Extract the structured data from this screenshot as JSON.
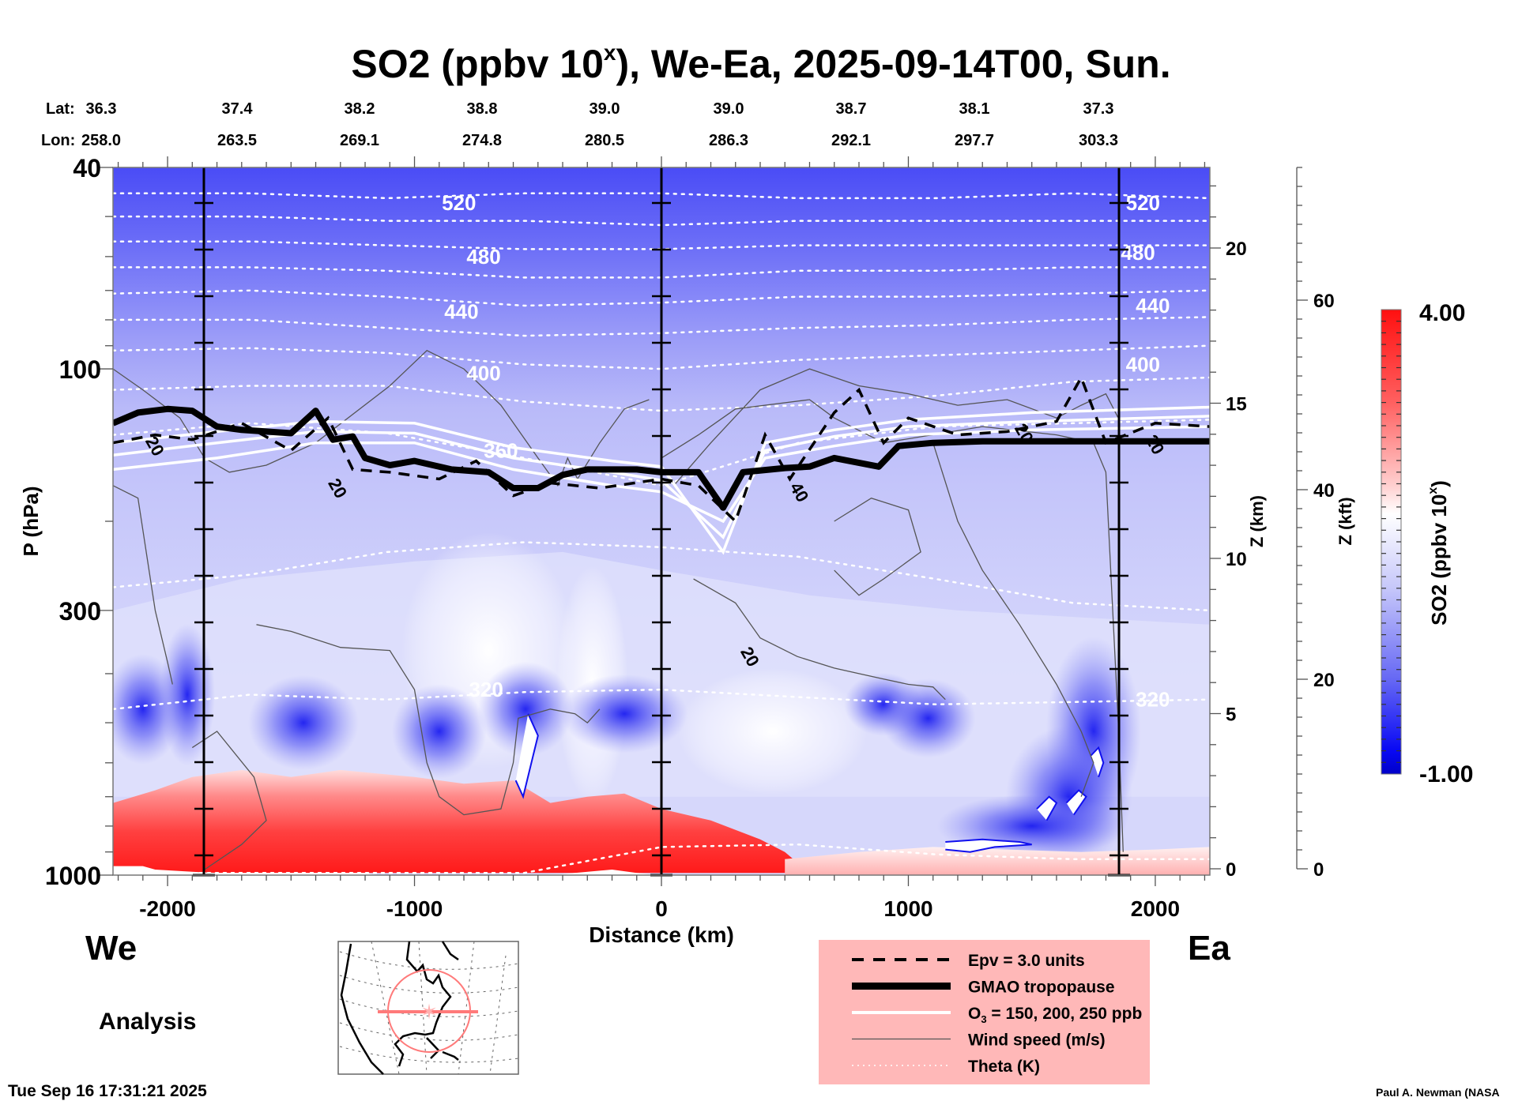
{
  "chart_data": {
    "type": "heatmap",
    "title": "SO2 (ppbv 10",
    "title_superscript": "x",
    "title_suffix": "), We-Ea, 2025-09-14T00, Sun.",
    "xlabel": "Distance (km)",
    "ylabel": "P (hPa)",
    "y2label": "Z (km)",
    "y3label": "Z (kft)",
    "colorbar_label": "SO2 (ppbv 10",
    "colorbar_label_superscript": "x",
    "colorbar_label_suffix": ")",
    "xlim": [
      -2221,
      2221
    ],
    "ylim_hPa": [
      1000,
      40
    ],
    "y_scale": "log",
    "x_ticks": [
      {
        "value": -2000,
        "label": "-2000"
      },
      {
        "value": -1000,
        "label": "-1000"
      },
      {
        "value": 0,
        "label": "0"
      },
      {
        "value": 1000,
        "label": "1000"
      },
      {
        "value": 2000,
        "label": "2000"
      }
    ],
    "y_ticks": [
      {
        "value": 40,
        "label": "40"
      },
      {
        "value": 100,
        "label": "100"
      },
      {
        "value": 300,
        "label": "300"
      },
      {
        "value": 1000,
        "label": "1000"
      }
    ],
    "z_km_ticks": [
      {
        "value": 0,
        "label": "0"
      },
      {
        "value": 5,
        "label": "5"
      },
      {
        "value": 10,
        "label": "10"
      },
      {
        "value": 15,
        "label": "15"
      },
      {
        "value": 20,
        "label": "20"
      }
    ],
    "z_kft_ticks": [
      {
        "value": 0,
        "label": "0"
      },
      {
        "value": 20,
        "label": "20"
      },
      {
        "value": 40,
        "label": "40"
      },
      {
        "value": 60,
        "label": "60"
      }
    ],
    "colorbar": {
      "min": -1.0,
      "max": 4.0,
      "min_label": "-1.00",
      "max_label": "4.00",
      "low_color": "#0000dd",
      "mid_color": "#ffffff",
      "high_color": "#ff0f0f"
    },
    "lat_label": "Lat:",
    "lon_label": "Lon:",
    "latlon_columns": [
      {
        "lat": "36.3",
        "lon": "258.0"
      },
      {
        "lat": "37.4",
        "lon": "263.5"
      },
      {
        "lat": "38.2",
        "lon": "269.1"
      },
      {
        "lat": "38.8",
        "lon": "274.8"
      },
      {
        "lat": "39.0",
        "lon": "280.5"
      },
      {
        "lat": "39.0",
        "lon": "286.3"
      },
      {
        "lat": "38.7",
        "lon": "292.1"
      },
      {
        "lat": "38.1",
        "lon": "297.7"
      },
      {
        "lat": "37.3",
        "lon": "303.3"
      }
    ],
    "vertical_markers_km": [
      -1853,
      0,
      1853
    ],
    "theta_labels": [
      {
        "label": "520",
        "x": -820,
        "p": 47
      },
      {
        "label": "480",
        "x": -720,
        "p": 60
      },
      {
        "label": "440",
        "x": -810,
        "p": 77
      },
      {
        "label": "400",
        "x": -720,
        "p": 102
      },
      {
        "label": "360",
        "x": -650,
        "p": 145
      },
      {
        "label": "320",
        "x": -710,
        "p": 430
      },
      {
        "label": "520",
        "x": 1950,
        "p": 47
      },
      {
        "label": "480",
        "x": 1930,
        "p": 59
      },
      {
        "label": "440",
        "x": 1990,
        "p": 75
      },
      {
        "label": "400",
        "x": 1950,
        "p": 98
      },
      {
        "label": "320",
        "x": 1990,
        "p": 450
      }
    ],
    "theta_lines": [
      {
        "theta": 520,
        "p": [
          45,
          45,
          46,
          45,
          45,
          46,
          46,
          45,
          46
        ]
      },
      {
        "theta": 500,
        "p": [
          50,
          50,
          51,
          51,
          52,
          51,
          51,
          51,
          51
        ]
      },
      {
        "theta": 480,
        "p": [
          56,
          56,
          57,
          58,
          58,
          57,
          57,
          57,
          57
        ]
      },
      {
        "theta": 460,
        "p": [
          63,
          63,
          64,
          66,
          66,
          64,
          64,
          63,
          63
        ]
      },
      {
        "theta": 440,
        "p": [
          71,
          70,
          72,
          75,
          74,
          72,
          72,
          71,
          70
        ]
      },
      {
        "theta": 420,
        "p": [
          80,
          80,
          83,
          86,
          85,
          83,
          82,
          80,
          79
        ]
      },
      {
        "theta": 400,
        "p": [
          92,
          91,
          93,
          98,
          100,
          96,
          94,
          92,
          90
        ]
      },
      {
        "theta": 380,
        "p": [
          110,
          108,
          108,
          116,
          121,
          118,
          113,
          106,
          104
        ]
      },
      {
        "theta": 360,
        "p": [
          135,
          128,
          134,
          150,
          170,
          140,
          130,
          128,
          126
        ]
      },
      {
        "theta": 340,
        "p": [
          270,
          255,
          230,
          220,
          225,
          235,
          260,
          290,
          300
        ]
      },
      {
        "theta": 320,
        "p": [
          470,
          440,
          450,
          435,
          430,
          445,
          460,
          455,
          450
        ]
      },
      {
        "theta": 300,
        "p": [
          990,
          990,
          990,
          990,
          880,
          870,
          910,
          930,
          930
        ]
      }
    ],
    "tropopause_p": [
      [
        -2221,
        128
      ],
      [
        -2120,
        122
      ],
      [
        -2000,
        120
      ],
      [
        -1900,
        121
      ],
      [
        -1800,
        130
      ],
      [
        -1700,
        132
      ],
      [
        -1500,
        134
      ],
      [
        -1400,
        121
      ],
      [
        -1330,
        138
      ],
      [
        -1250,
        136
      ],
      [
        -1200,
        150
      ],
      [
        -1100,
        155
      ],
      [
        -1000,
        152
      ],
      [
        -850,
        158
      ],
      [
        -700,
        160
      ],
      [
        -600,
        172
      ],
      [
        -500,
        172
      ],
      [
        -400,
        162
      ],
      [
        -300,
        158
      ],
      [
        -100,
        158
      ],
      [
        0,
        160
      ],
      [
        150,
        160
      ],
      [
        250,
        188
      ],
      [
        330,
        160
      ],
      [
        500,
        157
      ],
      [
        600,
        156
      ],
      [
        700,
        150
      ],
      [
        880,
        156
      ],
      [
        960,
        142
      ],
      [
        1100,
        140
      ],
      [
        1300,
        139
      ],
      [
        1600,
        139
      ],
      [
        1900,
        139
      ],
      [
        2221,
        139
      ]
    ],
    "epv_p": [
      [
        -2221,
        140
      ],
      [
        -2050,
        135
      ],
      [
        -1900,
        138
      ],
      [
        -1700,
        128
      ],
      [
        -1500,
        145
      ],
      [
        -1350,
        125
      ],
      [
        -1250,
        158
      ],
      [
        -1100,
        160
      ],
      [
        -900,
        165
      ],
      [
        -750,
        152
      ],
      [
        -600,
        178
      ],
      [
        -450,
        168
      ],
      [
        -250,
        172
      ],
      [
        0,
        165
      ],
      [
        150,
        170
      ],
      [
        300,
        200
      ],
      [
        420,
        135
      ],
      [
        520,
        165
      ],
      [
        700,
        122
      ],
      [
        800,
        110
      ],
      [
        900,
        140
      ],
      [
        1000,
        125
      ],
      [
        1200,
        135
      ],
      [
        1400,
        133
      ],
      [
        1600,
        127
      ],
      [
        1700,
        104
      ],
      [
        1800,
        140
      ],
      [
        2000,
        128
      ],
      [
        2221,
        130
      ]
    ],
    "o3_lines": [
      {
        "ppb": 150,
        "p": [
          [
            -2221,
            158
          ],
          [
            -1800,
            150
          ],
          [
            -1400,
            140
          ],
          [
            -1000,
            140
          ],
          [
            -600,
            158
          ],
          [
            -200,
            170
          ],
          [
            0,
            175
          ],
          [
            250,
            200
          ],
          [
            420,
            150
          ],
          [
            700,
            142
          ],
          [
            1000,
            135
          ],
          [
            1500,
            132
          ],
          [
            2221,
            130
          ]
        ]
      },
      {
        "ppb": 200,
        "p": [
          [
            -2221,
            148
          ],
          [
            -1800,
            140
          ],
          [
            -1400,
            133
          ],
          [
            -1000,
            134
          ],
          [
            -600,
            150
          ],
          [
            -200,
            160
          ],
          [
            0,
            166
          ],
          [
            250,
            215
          ],
          [
            420,
            145
          ],
          [
            700,
            136
          ],
          [
            1000,
            130
          ],
          [
            1500,
            127
          ],
          [
            2221,
            124
          ]
        ]
      },
      {
        "ppb": 250,
        "p": [
          [
            -2221,
            140
          ],
          [
            -1800,
            133
          ],
          [
            -1400,
            127
          ],
          [
            -1000,
            128
          ],
          [
            -600,
            143
          ],
          [
            -200,
            152
          ],
          [
            0,
            156
          ],
          [
            250,
            230
          ],
          [
            420,
            140
          ],
          [
            700,
            132
          ],
          [
            1000,
            126
          ],
          [
            1500,
            122
          ],
          [
            2221,
            119
          ]
        ]
      }
    ],
    "wind_labels": [
      {
        "label": "20",
        "x": -2050,
        "p": 142
      },
      {
        "label": "20",
        "x": -1310,
        "p": 172
      },
      {
        "label": "40",
        "x": 560,
        "p": 175
      },
      {
        "label": "20",
        "x": 360,
        "p": 370
      },
      {
        "label": "20",
        "x": 1470,
        "p": 134
      },
      {
        "label": "20",
        "x": 2000,
        "p": 141
      }
    ],
    "legend": {
      "items": [
        {
          "style": "dashed",
          "label": "Epv = 3.0 units"
        },
        {
          "style": "thick",
          "label": "GMAO tropopause"
        },
        {
          "style": "white",
          "label": "O",
          "sub": "3",
          "label_suffix": " = 150, 200, 250 ppb"
        },
        {
          "style": "thin",
          "label": "Wind speed (m/s)"
        },
        {
          "style": "dotted",
          "label": "Theta (K)"
        }
      ],
      "background": "#ffb8b8"
    },
    "left_direction": "We",
    "right_direction": "Ea",
    "analysis_label": "Analysis",
    "timestamp": "Tue Sep 16 17:31:21 2025",
    "credit": "Paul A. Newman (NASA"
  }
}
